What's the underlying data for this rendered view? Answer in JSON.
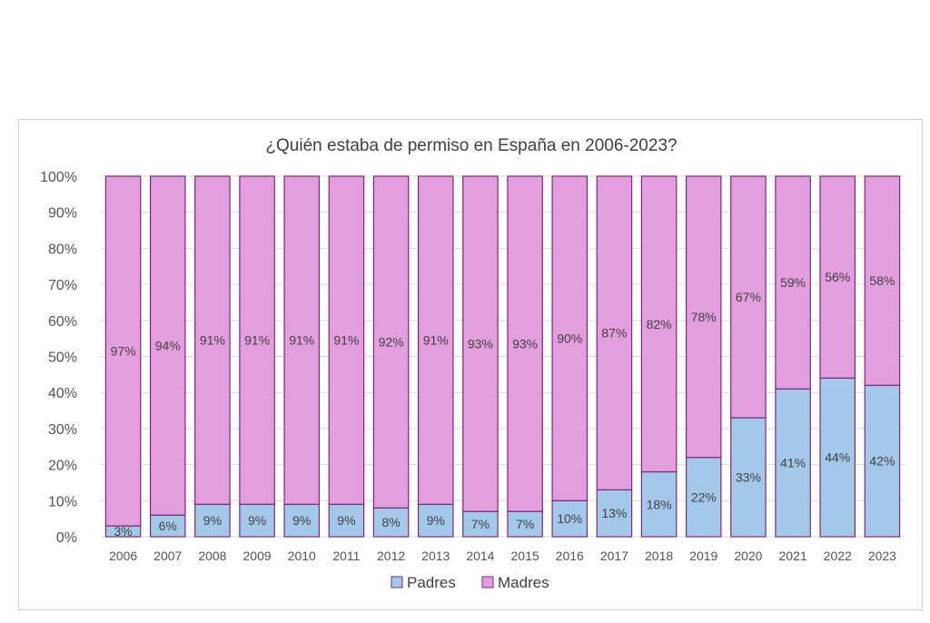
{
  "chart_data": {
    "type": "bar",
    "stacked": "percent",
    "title": "¿Quién estaba de permiso en España en 2006-2023?",
    "categories": [
      "2006",
      "2007",
      "2008",
      "2009",
      "2010",
      "2011",
      "2012",
      "2013",
      "2014",
      "2015",
      "2016",
      "2017",
      "2018",
      "2019",
      "2020",
      "2021",
      "2022",
      "2023"
    ],
    "series": [
      {
        "name": "Padres",
        "color": "#a4c8ea",
        "values": [
          3,
          6,
          9,
          9,
          9,
          9,
          8,
          9,
          7,
          7,
          10,
          13,
          18,
          22,
          33,
          41,
          44,
          42
        ]
      },
      {
        "name": "Madres",
        "color": "#e39ede",
        "values": [
          97,
          94,
          91,
          91,
          91,
          91,
          92,
          91,
          93,
          93,
          90,
          87,
          82,
          78,
          67,
          59,
          56,
          58
        ]
      }
    ],
    "y_ticks": [
      "0%",
      "10%",
      "20%",
      "30%",
      "40%",
      "50%",
      "60%",
      "70%",
      "80%",
      "90%",
      "100%"
    ],
    "ylim": [
      0,
      100
    ],
    "grid": true,
    "legend_position": "bottom",
    "bar_outline_color": "#7a2a7a",
    "data_labels": true
  }
}
